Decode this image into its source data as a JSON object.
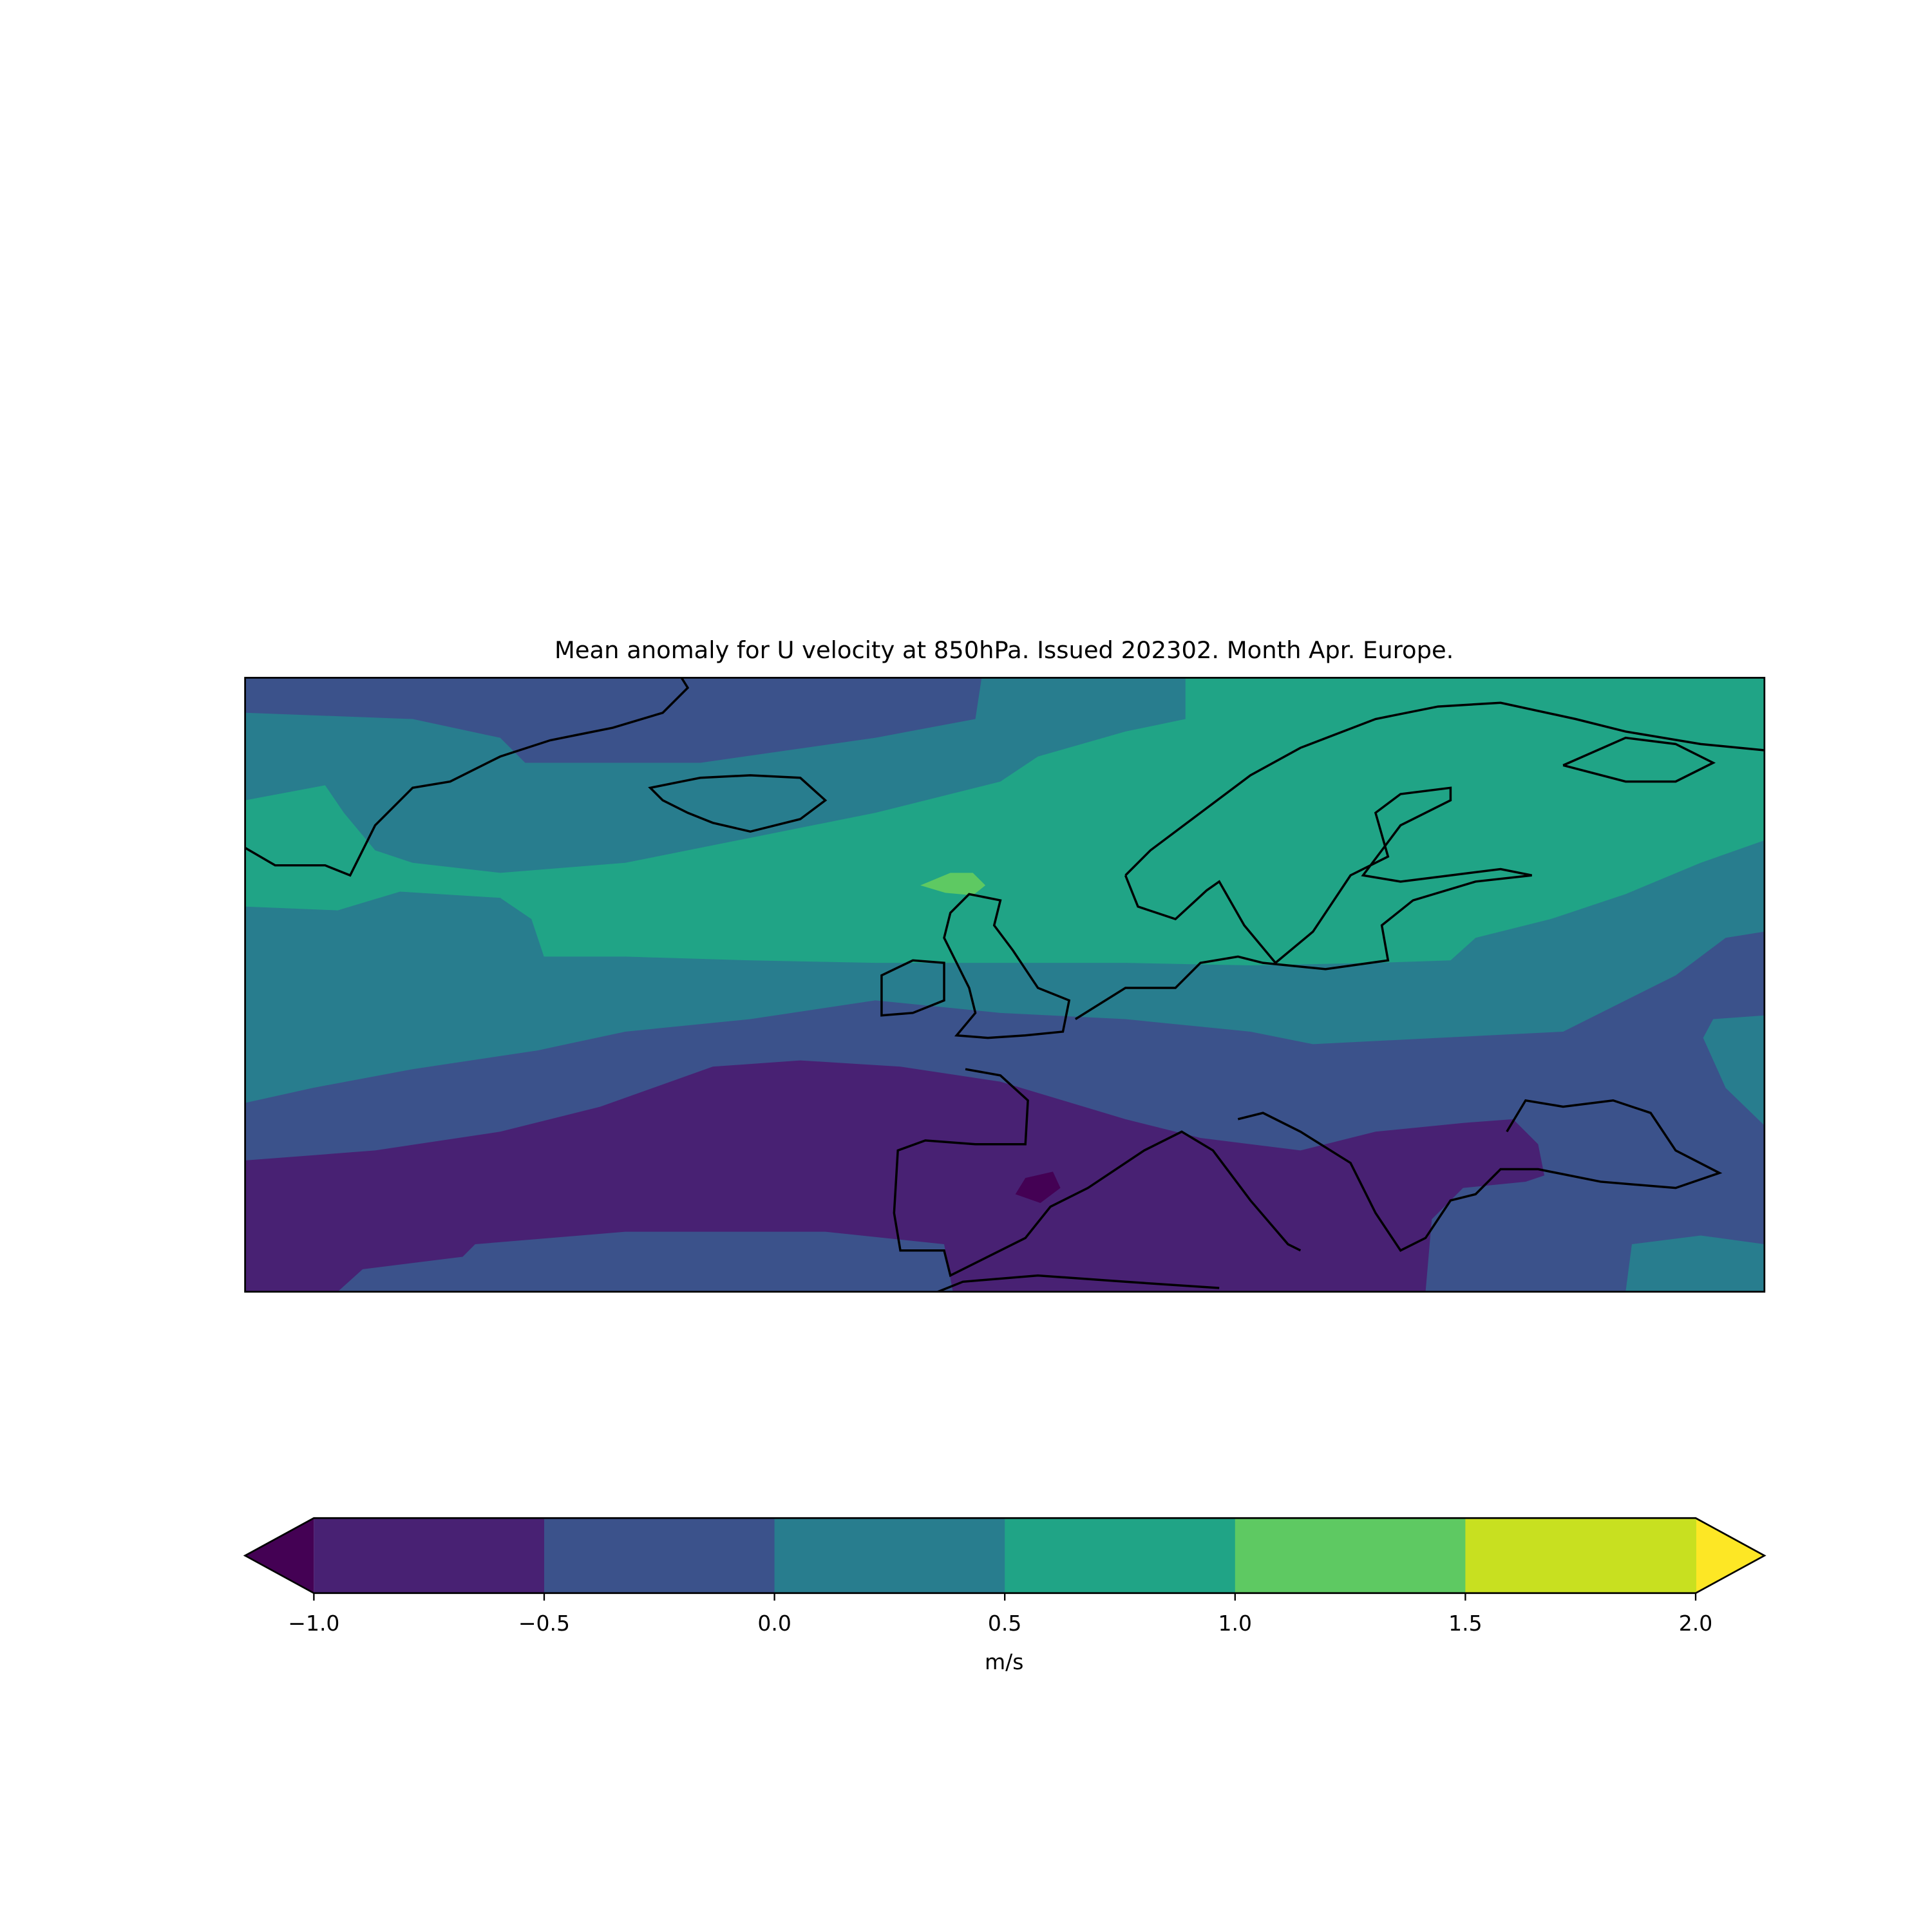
{
  "chart_data": {
    "type": "contour-map",
    "title": "Mean anomaly for U velocity at 850hPa. Issued 202302. Month Apr. Europe.",
    "colorbar": {
      "label": "m/s",
      "ticks": [
        {
          "value": -1.0,
          "label": "−1.0"
        },
        {
          "value": -0.5,
          "label": "−0.5"
        },
        {
          "value": 0.0,
          "label": "0.0"
        },
        {
          "value": 0.5,
          "label": "0.5"
        },
        {
          "value": 1.0,
          "label": "1.0"
        },
        {
          "value": 1.5,
          "label": "1.5"
        },
        {
          "value": 2.0,
          "label": "2.0"
        }
      ],
      "colors": [
        "#482173",
        "#3b528b",
        "#287d8e",
        "#20a486",
        "#5ec962",
        "#c8e020"
      ],
      "under_color": "#440154",
      "over_color": "#fde725"
    }
  }
}
